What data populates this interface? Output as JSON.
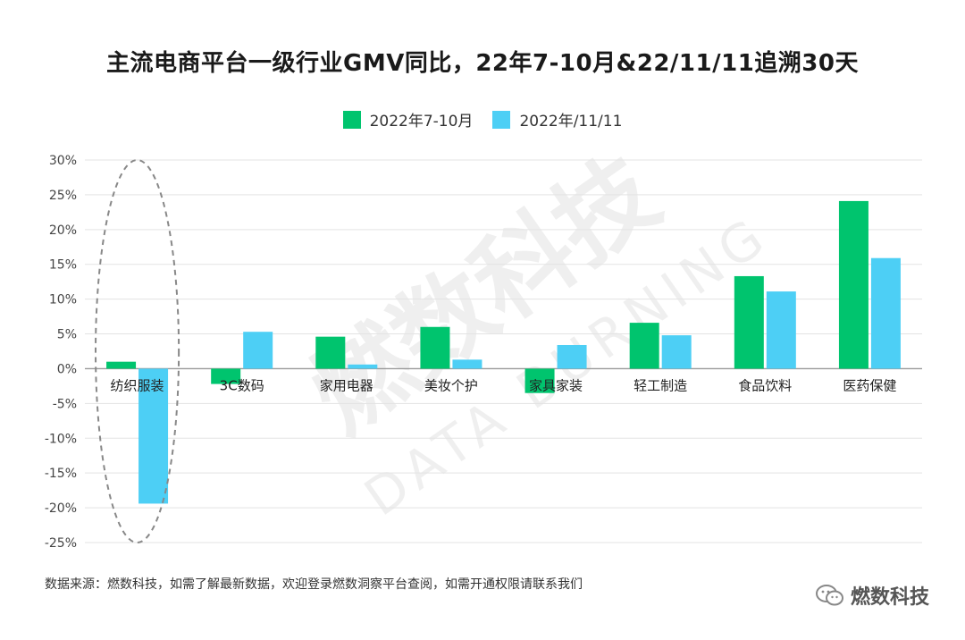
{
  "chart_data": {
    "type": "bar",
    "title": "主流电商平台一级行业GMV同比，22年7-10月&22/11/11追溯30天",
    "categories": [
      "纺织服装",
      "3C数码",
      "家用电器",
      "美妆个护",
      "家具家装",
      "轻工制造",
      "食品饮料",
      "医药保健"
    ],
    "series": [
      {
        "name": "2022年7-10月",
        "color": "#00c46e",
        "values": [
          1.0,
          -2.2,
          4.6,
          6.0,
          -3.5,
          6.6,
          13.3,
          24.1
        ]
      },
      {
        "name": "2022年/11/11",
        "color": "#4dcff5",
        "values": [
          -19.4,
          5.3,
          0.6,
          1.3,
          3.4,
          4.8,
          11.1,
          15.9
        ]
      }
    ],
    "ylim": [
      -25,
      30
    ],
    "yticks": [
      30,
      25,
      20,
      15,
      10,
      5,
      0,
      -5,
      -10,
      -15,
      -20,
      -25
    ],
    "ytick_labels": [
      "30%",
      "25%",
      "20%",
      "15%",
      "10%",
      "5%",
      "0%",
      "-5%",
      "-10%",
      "-15%",
      "-20%",
      "-25%"
    ],
    "xlabel": "",
    "ylabel": "",
    "grid": true,
    "legend": "top-center",
    "highlight_category": "纺织服装"
  },
  "source_text": "数据来源：燃数科技，如需了解最新数据，欢迎登录燃数洞察平台查阅，如需开通权限请联系我们",
  "brand_name": "燃数科技",
  "watermark": {
    "cn": "燃数科技",
    "en": "DATA BURNING"
  }
}
